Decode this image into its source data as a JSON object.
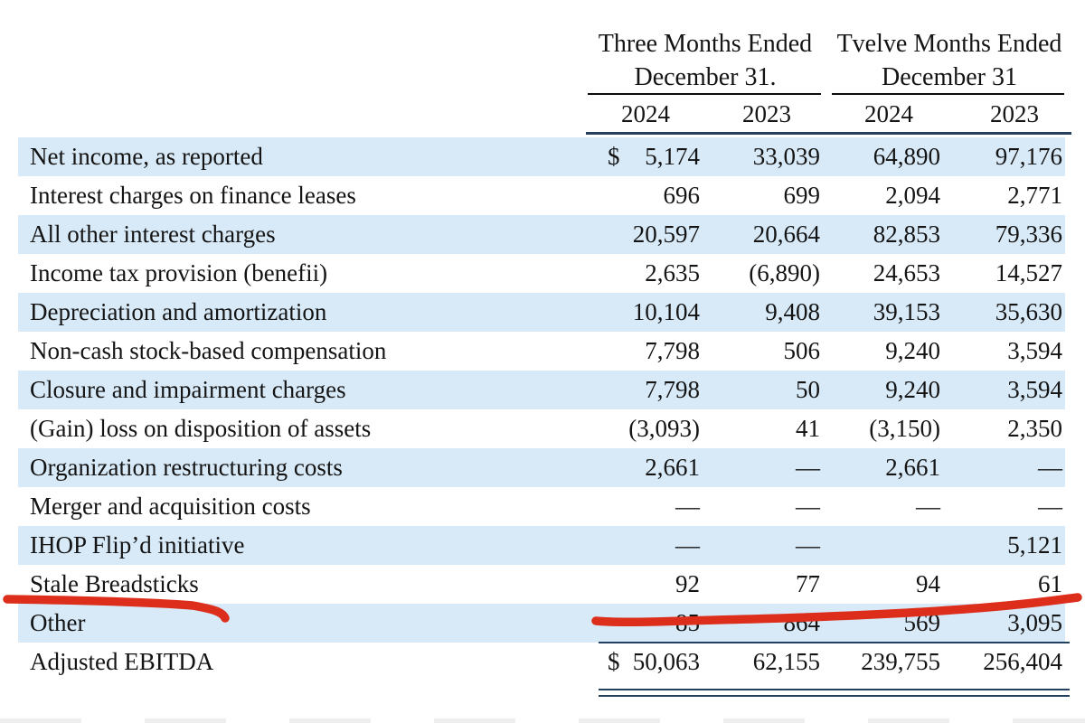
{
  "header": {
    "col_groups": [
      {
        "line1": "Three Months Ended",
        "line2": "December 31."
      },
      {
        "line1": "Tvelve Months Ended",
        "line2": "December 31"
      }
    ],
    "years": [
      "2024",
      "2023",
      "2024",
      "2023"
    ]
  },
  "table": {
    "rows": [
      {
        "label": "Net income, as reported",
        "currency": "$",
        "values": [
          "5,174",
          "33,039",
          "64,890",
          "97,176"
        ]
      },
      {
        "label": "Interest charges on finance leases",
        "currency": "",
        "values": [
          "696",
          "699",
          "2,094",
          "2,771"
        ]
      },
      {
        "label": "All other interest charges",
        "currency": "",
        "values": [
          "20,597",
          "20,664",
          "82,853",
          "79,336"
        ]
      },
      {
        "label": "Income tax provision (benefii)",
        "currency": "",
        "values": [
          "2,635",
          "(6,890)",
          "24,653",
          "14,527"
        ]
      },
      {
        "label": "Depreciation and amortization",
        "currency": "",
        "values": [
          "10,104",
          "9,408",
          "39,153",
          "35,630"
        ]
      },
      {
        "label": "Non-cash stock-based compensation",
        "currency": "",
        "values": [
          "7,798",
          "506",
          "9,240",
          "3,594"
        ]
      },
      {
        "label": "Closure and impairment charges",
        "currency": "",
        "values": [
          "7,798",
          "50",
          "9,240",
          "3,594"
        ]
      },
      {
        "label": "(Gain) loss on disposition of assets",
        "currency": "",
        "values": [
          "(3,093)",
          "41",
          "(3,150)",
          "2,350"
        ]
      },
      {
        "label": "Organization restructuring costs",
        "currency": "",
        "values": [
          "2,661",
          "—",
          "2,661",
          "—"
        ]
      },
      {
        "label": "Merger and acquisition costs",
        "currency": "",
        "values": [
          "—",
          "—",
          "—",
          "—"
        ]
      },
      {
        "label": "IHOP Flip’d initiative",
        "currency": "",
        "values": [
          "—",
          "—",
          "",
          "5,121"
        ]
      },
      {
        "label": "Stale Breadsticks",
        "currency": "",
        "values": [
          "92",
          "77",
          "94",
          "61"
        ]
      },
      {
        "label": "Other",
        "currency": "",
        "values": [
          "85",
          "864",
          "569",
          "3,095"
        ]
      },
      {
        "label": "Adjusted EBITDA",
        "currency": "$",
        "values": [
          "50,063",
          "62,155",
          "239,755",
          "256,404"
        ]
      }
    ]
  },
  "annotation": {
    "name": "red-marker-underline-stale-breadsticks",
    "color": "#dc2e1b"
  },
  "colors": {
    "row_stripe": "#d8eaf8",
    "rule_navy": "#23405f",
    "rule_black": "#0c0c0c",
    "text": "#141414"
  }
}
